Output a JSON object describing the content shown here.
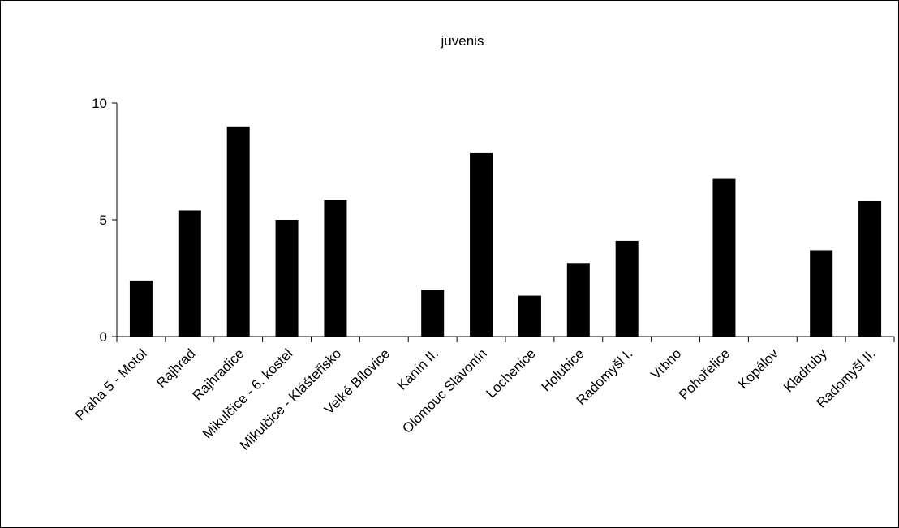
{
  "chart_data": {
    "type": "bar",
    "title": "juvenis",
    "xlabel": "",
    "ylabel": "",
    "ylim": [
      0,
      10
    ],
    "yticks": [
      0,
      5,
      10
    ],
    "grid": false,
    "bar_color": "#000000",
    "categories": [
      "Praha 5 - Motol",
      "Rajhrad",
      "Rajhradice",
      "Mikulčice - 6. kostel",
      "Mikulčice - Klášteřisko",
      "Velké Bílovice",
      "Kanín II.",
      "Olomouc Slavonín",
      "Lochenice",
      "Holubice",
      "Radomyšl I.",
      "Vrbno",
      "Pohořelice",
      "Kopálov",
      "Kladruby",
      "Radomyšl II."
    ],
    "values": [
      2.4,
      5.4,
      9.0,
      5.0,
      5.85,
      0,
      2.0,
      7.85,
      1.75,
      3.15,
      4.1,
      0,
      6.75,
      0,
      3.7,
      5.8
    ]
  }
}
